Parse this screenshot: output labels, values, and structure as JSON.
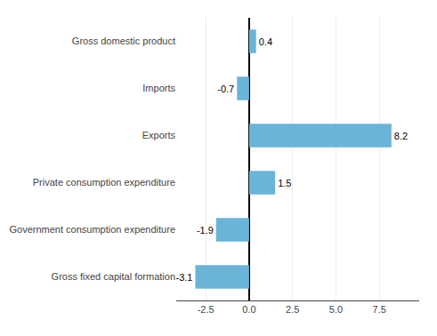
{
  "chart_data": {
    "type": "bar",
    "orientation": "horizontal",
    "categories": [
      "Gross fixed capital formation",
      "Government consumption expenditure",
      "Private consumption expenditure",
      "Exports",
      "Imports",
      "Gross domestic product"
    ],
    "values": [
      -3.1,
      -1.9,
      1.5,
      8.2,
      -0.7,
      0.4
    ],
    "color": "#6ab4d8",
    "xlim": [
      -4.2,
      9.8
    ],
    "xticks": [
      -2.5,
      {
        "value": 0.0,
        "label": "0.0"
      },
      2.5,
      {
        "value": 5.0,
        "label": "5.0"
      },
      7.5
    ],
    "grid": true,
    "data_labels": true
  }
}
